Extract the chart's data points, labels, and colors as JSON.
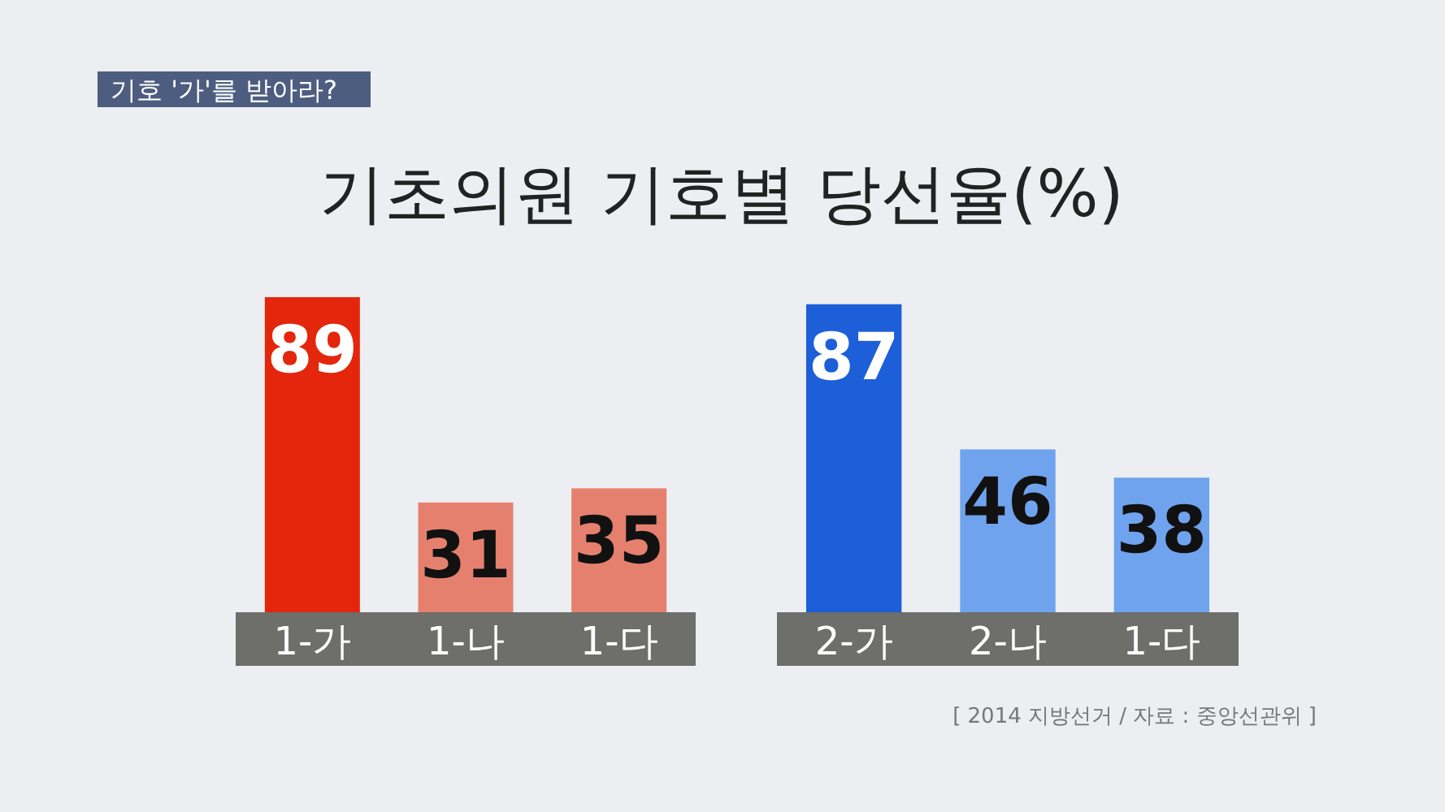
{
  "chart_data": [
    {
      "type": "bar",
      "title": "기초의원 기호별 당선율(%)",
      "annotations": [
        "기호 '가'를 받아라?"
      ],
      "categories": [
        "1-가",
        "1-나",
        "1-다"
      ],
      "values": [
        89,
        31,
        35
      ],
      "colors": [
        "#e3260c",
        "#e5806f",
        "#e5806f"
      ],
      "data_labels": true
    },
    {
      "type": "bar",
      "annotations": [
        "[ 2014 지방선거 / 자료 : 중앙선관위 ]"
      ],
      "categories": [
        "2-가",
        "2-나",
        "1-다"
      ],
      "values": [
        87,
        46,
        38
      ],
      "colors": [
        "#1c5fd8",
        "#6fa3ee",
        "#6fa3ee"
      ],
      "data_labels": true
    }
  ]
}
